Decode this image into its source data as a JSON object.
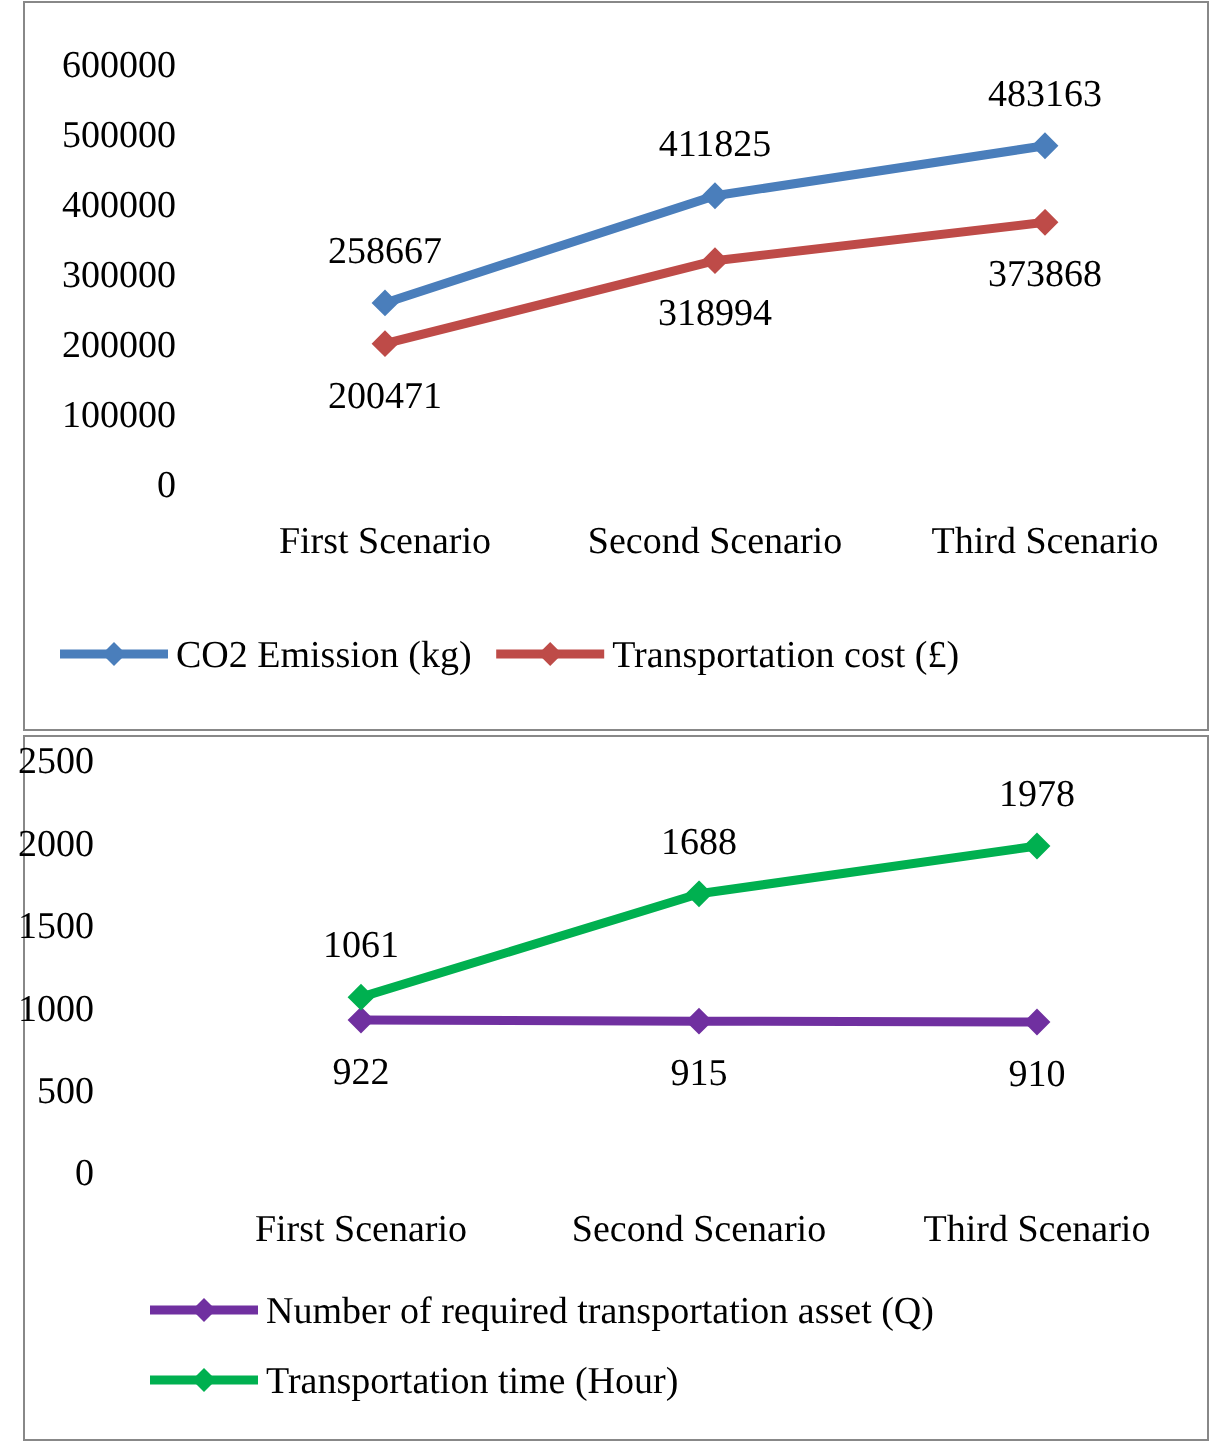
{
  "chart_data": [
    {
      "type": "line",
      "categories": [
        "First Scenario",
        "Second Scenario",
        "Third Scenario"
      ],
      "series": [
        {
          "name": "CO2 Emission (kg)",
          "color": "#4a7ebb",
          "values": [
            258667,
            411825,
            483163
          ]
        },
        {
          "name": "Transportation cost (£)",
          "color": "#be4b48",
          "values": [
            200471,
            318994,
            373868
          ]
        }
      ],
      "ylim": [
        0,
        600000
      ],
      "yticks": [
        0,
        100000,
        200000,
        300000,
        400000,
        500000,
        600000
      ],
      "data_labels": true,
      "marker": "diamond",
      "legend": "bottom",
      "grid": false
    },
    {
      "type": "line",
      "categories": [
        "First Scenario",
        "Second Scenario",
        "Third Scenario"
      ],
      "series": [
        {
          "name": "Number of required  transportation asset (Q)",
          "color": "#7030a0",
          "values": [
            922,
            915,
            910
          ]
        },
        {
          "name": "Transportation time (Hour)",
          "color": "#00b050",
          "values": [
            1061,
            1688,
            1978
          ]
        }
      ],
      "ylim": [
        0,
        2500
      ],
      "yticks": [
        0,
        500,
        1000,
        1500,
        2000,
        2500
      ],
      "data_labels": true,
      "marker": "diamond",
      "legend": "bottom",
      "grid": false
    }
  ]
}
